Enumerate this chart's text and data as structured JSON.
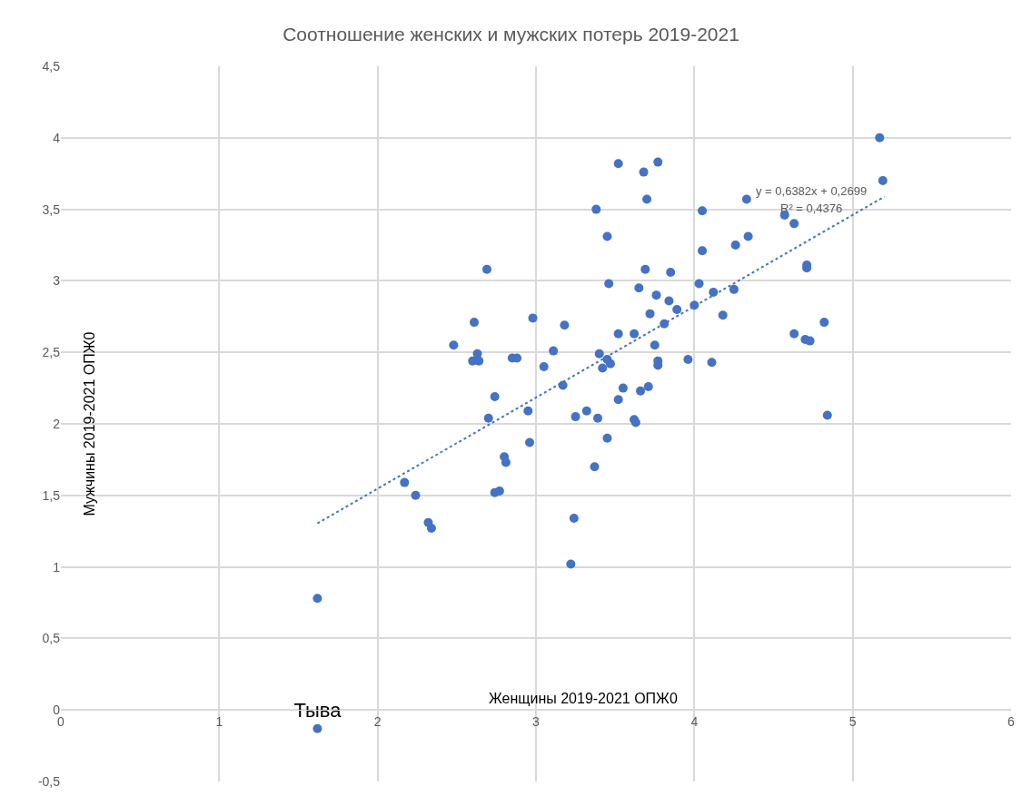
{
  "chart_data": {
    "type": "scatter",
    "title": "Соотношение женских и мужских потерь 2019-2021",
    "xlabel": "Женщины 2019-2021 ОПЖ0",
    "ylabel": "Мужчины 2019-2021 ОПЖ0",
    "xlim": [
      0,
      6
    ],
    "xticks": [
      0,
      1,
      2,
      3,
      4,
      5,
      6
    ],
    "ylim": [
      -0.5,
      4.5
    ],
    "yticks": [
      {
        "value": -0.5,
        "label": "-0,5"
      },
      0,
      {
        "value": 0.5,
        "label": "0,5"
      },
      1,
      {
        "value": 1.5,
        "label": "1,5"
      },
      2,
      {
        "value": 2.5,
        "label": "2,5"
      },
      3,
      {
        "value": 3.5,
        "label": "3,5"
      },
      4,
      {
        "value": 4.5,
        "label": "4,5"
      }
    ],
    "grid": true,
    "marker": "circle",
    "series": [
      {
        "color": "#4472c4",
        "x": [
          1.62,
          2.17,
          2.24,
          2.32,
          2.34,
          2.48,
          2.61,
          2.63,
          2.6,
          2.64,
          2.69,
          2.7,
          2.74,
          2.74,
          2.77,
          2.8,
          2.81,
          2.85,
          2.88,
          2.95,
          2.96,
          2.98,
          3.05,
          3.11,
          3.17,
          3.18,
          3.22,
          3.24,
          3.25,
          3.32,
          3.37,
          3.38,
          3.39,
          3.4,
          3.42,
          3.45,
          3.45,
          3.45,
          3.46,
          3.47,
          3.52,
          3.52,
          3.52,
          3.55,
          3.62,
          3.62,
          3.63,
          3.65,
          3.66,
          3.68,
          3.69,
          3.7,
          3.71,
          3.72,
          3.75,
          3.76,
          3.77,
          3.77,
          3.77,
          3.81,
          3.84,
          3.85,
          3.89,
          3.96,
          4.0,
          4.03,
          4.05,
          4.05,
          4.11,
          4.12,
          4.18,
          4.26,
          4.25,
          4.33,
          4.34,
          4.57,
          4.63,
          4.63,
          4.7,
          4.71,
          4.71,
          4.73,
          4.82,
          4.84,
          5.17,
          5.19
        ],
        "values": [
          0.78,
          1.59,
          1.5,
          1.31,
          1.27,
          2.55,
          2.71,
          2.49,
          2.44,
          2.44,
          3.08,
          2.04,
          2.19,
          1.52,
          1.53,
          1.77,
          1.73,
          2.46,
          2.46,
          2.09,
          1.87,
          2.74,
          2.4,
          2.51,
          2.27,
          2.69,
          1.02,
          1.34,
          2.05,
          2.09,
          1.7,
          3.5,
          2.04,
          2.49,
          2.39,
          1.9,
          3.31,
          2.45,
          2.98,
          2.42,
          2.63,
          2.17,
          3.82,
          2.25,
          2.63,
          2.03,
          2.01,
          2.95,
          2.23,
          3.76,
          3.08,
          3.57,
          2.26,
          2.77,
          2.55,
          2.9,
          2.41,
          2.44,
          3.83,
          2.7,
          2.86,
          3.06,
          2.8,
          2.45,
          2.83,
          2.98,
          3.49,
          3.21,
          2.43,
          2.92,
          2.76,
          3.25,
          2.94,
          3.57,
          3.31,
          3.46,
          3.4,
          2.63,
          2.59,
          3.11,
          3.09,
          2.58,
          2.71,
          2.06,
          4.0,
          3.7
        ]
      },
      {
        "name": "Тыва",
        "color": "#4472c4",
        "x": [
          1.62
        ],
        "values": [
          -0.13
        ]
      },
      {
        "type": "line",
        "color": "#4472c4",
        "line_style": "dotted",
        "marker": "none",
        "x": [
          1.62,
          5.2
        ],
        "values": [
          1.304,
          3.588
        ]
      }
    ],
    "annotations": [
      "y = 0,6382x + 0,2699",
      "R² = 0,4376"
    ]
  }
}
